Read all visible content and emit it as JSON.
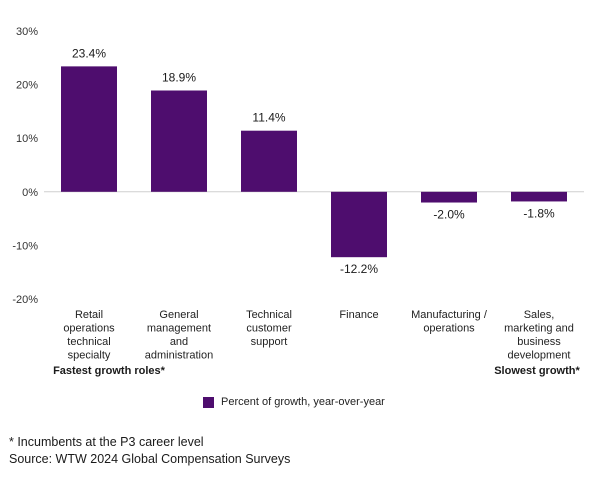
{
  "chart_data": {
    "type": "bar",
    "categories": [
      [
        "Retail",
        "operations",
        "technical",
        "specialty"
      ],
      [
        "General",
        "management",
        "and",
        "administration"
      ],
      [
        "Technical",
        "customer",
        "support"
      ],
      [
        "Finance"
      ],
      [
        "Manufacturing /",
        "operations"
      ],
      [
        "Sales,",
        "marketing and",
        "business",
        "development"
      ]
    ],
    "values": [
      23.4,
      18.9,
      11.4,
      -12.2,
      -2.0,
      -1.8
    ],
    "data_labels": [
      "23.4%",
      "18.9%",
      "11.4%",
      "-12.2%",
      "-2.0%",
      "-1.8%"
    ],
    "ylim": [
      -20,
      30
    ],
    "yticks": [
      30,
      20,
      10,
      0,
      -10,
      -20
    ],
    "ytick_labels": [
      "30%",
      "20%",
      "10%",
      "0%",
      "-10%",
      "-20%"
    ],
    "grid": false,
    "bar_color": "#4e0d6e",
    "group_labels": {
      "left": "Fastest growth roles*",
      "right": "Slowest growth*"
    },
    "legend": {
      "label": "Percent of growth, year-over-year",
      "position": "bottom-center"
    }
  },
  "footnotes": {
    "line1": "* Incumbents at the P3 career level",
    "line2": "Source: WTW 2024 Global Compensation Surveys"
  }
}
